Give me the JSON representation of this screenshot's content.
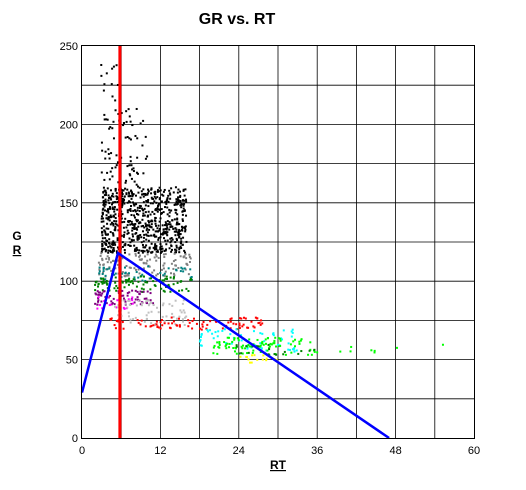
{
  "chart_data": {
    "type": "scatter",
    "title": "GR vs. RT",
    "xlabel": "RT",
    "ylabel": "GR",
    "xlim": [
      0,
      60
    ],
    "ylim": [
      0,
      250
    ],
    "grid": true,
    "x_ticks": [
      0,
      12,
      24,
      36,
      48,
      60
    ],
    "x_tick_labels": [
      "0",
      "12",
      "24",
      "36",
      "48",
      "60"
    ],
    "y_ticks": [
      0,
      50,
      100,
      150,
      200,
      250
    ],
    "y_tick_labels": [
      "0",
      "50",
      "100",
      "150",
      "200",
      "250"
    ],
    "x_minor_step": 6,
    "y_minor_step": 25,
    "clusters": [
      {
        "color": "#000000",
        "n": 90,
        "x": [
          3,
          10
        ],
        "y": [
          150,
          210
        ]
      },
      {
        "color": "#000000",
        "n": 700,
        "x": [
          3,
          16
        ],
        "y": [
          118,
          160
        ]
      },
      {
        "color": "#000000",
        "n": 12,
        "x": [
          2.5,
          6
        ],
        "y": [
          215,
          238
        ]
      },
      {
        "color": "#808080",
        "n": 120,
        "x": [
          2.5,
          17
        ],
        "y": [
          103,
          118
        ]
      },
      {
        "color": "#008080",
        "n": 50,
        "x": [
          2.5,
          17
        ],
        "y": [
          100,
          110
        ]
      },
      {
        "color": "#008000",
        "n": 90,
        "x": [
          2,
          17
        ],
        "y": [
          93,
          103
        ]
      },
      {
        "color": "#800080",
        "n": 70,
        "x": [
          2,
          11
        ],
        "y": [
          85,
          94
        ]
      },
      {
        "color": "#ff00ff",
        "n": 20,
        "x": [
          2,
          8
        ],
        "y": [
          82,
          90
        ]
      },
      {
        "color": "#c0c0c0",
        "n": 70,
        "x": [
          5,
          16
        ],
        "y": [
          72,
          88
        ]
      },
      {
        "color": "#ff0000",
        "n": 90,
        "x": [
          4,
          28
        ],
        "y": [
          69,
          77
        ]
      },
      {
        "color": "#00ffff",
        "n": 60,
        "x": [
          18,
          33
        ],
        "y": [
          55,
          70
        ]
      },
      {
        "color": "#00ff00",
        "n": 90,
        "x": [
          20,
          36
        ],
        "y": [
          53,
          64
        ]
      },
      {
        "color": "#008000",
        "n": 20,
        "x": [
          22,
          36
        ],
        "y": [
          53,
          60
        ]
      },
      {
        "color": "#ffff00",
        "n": 15,
        "x": [
          22,
          30
        ],
        "y": [
          48,
          53
        ]
      },
      {
        "color": "#00ff00",
        "n": 8,
        "x": [
          36,
          57
        ],
        "y": [
          54,
          60
        ]
      }
    ],
    "lines": [
      {
        "color": "#ff0000",
        "x": [
          5.8,
          5.8
        ],
        "y": [
          0,
          250
        ],
        "width": 3
      },
      {
        "color": "#0000ff",
        "x": [
          0,
          5.5,
          47
        ],
        "y": [
          29,
          118,
          0
        ],
        "width": 2.5
      }
    ]
  }
}
